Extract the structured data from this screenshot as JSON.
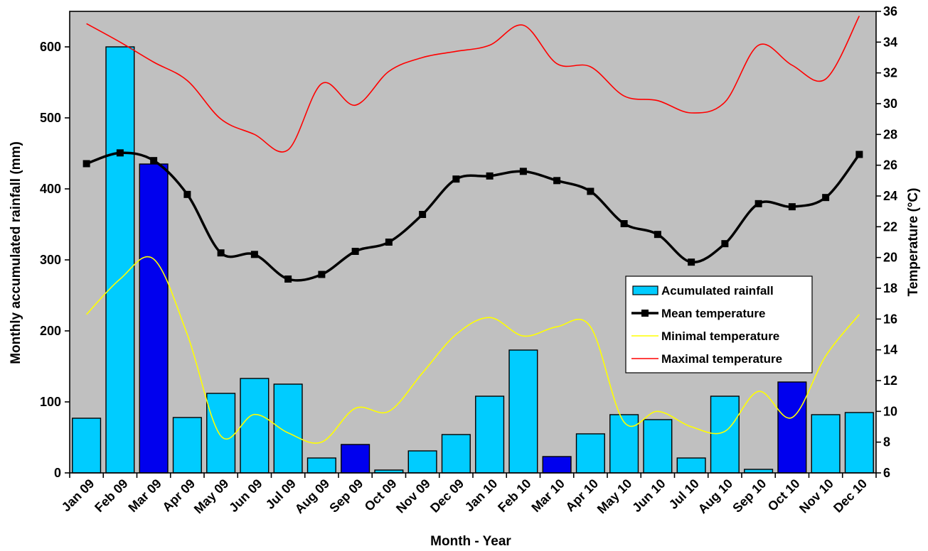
{
  "chart_data": {
    "type": "bar",
    "title": "",
    "xlabel": "Month - Year",
    "ylabel": "Monthly accumulated rainfall (mm)",
    "y2label": "Temperature (°C)",
    "categories": [
      "Jan 09",
      "Feb 09",
      "Mar 09",
      "Apr 09",
      "May 09",
      "Jun 09",
      "Jul 09",
      "Aug 09",
      "Sep 09",
      "Oct 09",
      "Nov 09",
      "Dec 09",
      "Jan 10",
      "Feb 10",
      "Mar 10",
      "Apr 10",
      "May 10",
      "Jun 10",
      "Jul 10",
      "Aug 10",
      "Sep 10",
      "Oct 10",
      "Nov 10",
      "Dec 10"
    ],
    "ylim": [
      0,
      650
    ],
    "y_ticks": [
      0,
      100,
      200,
      300,
      400,
      500,
      600
    ],
    "y2lim": [
      6,
      36
    ],
    "y2_ticks": [
      6,
      8,
      10,
      12,
      14,
      16,
      18,
      20,
      22,
      24,
      26,
      28,
      30,
      32,
      34,
      36
    ],
    "grid": false,
    "legend_position": "center-right",
    "colors": {
      "plot_background": "#c0c0c0",
      "bar_light": "#00ccff",
      "bar_dark": "#0000ee",
      "mean_line": "#000000",
      "min_line": "#ffff00",
      "max_line": "#ff0000"
    },
    "series": [
      {
        "name": "Acumulated rainfall",
        "kind": "bar",
        "axis": "left",
        "values": [
          77,
          600,
          435,
          78,
          112,
          133,
          125,
          21,
          40,
          4,
          31,
          54,
          108,
          173,
          23,
          55,
          82,
          75,
          21,
          108,
          5,
          128,
          82,
          85
        ],
        "highlighted": [
          false,
          false,
          true,
          false,
          false,
          false,
          false,
          false,
          true,
          false,
          false,
          false,
          false,
          false,
          true,
          false,
          false,
          false,
          false,
          false,
          false,
          true,
          false,
          false
        ]
      },
      {
        "name": "Mean temperature",
        "kind": "line-markers",
        "axis": "right",
        "values": [
          26.1,
          26.8,
          26.3,
          24.1,
          20.3,
          20.2,
          18.6,
          18.9,
          20.4,
          21.0,
          22.8,
          25.1,
          25.3,
          25.6,
          25.0,
          24.3,
          22.2,
          21.5,
          19.7,
          20.9,
          23.5,
          23.3,
          23.9,
          26.7
        ]
      },
      {
        "name": "Minimal temperature",
        "kind": "line",
        "axis": "right",
        "values": [
          16.3,
          18.6,
          19.9,
          15.0,
          8.4,
          9.8,
          8.6,
          8.0,
          10.2,
          10.0,
          12.5,
          15.0,
          16.1,
          14.9,
          15.5,
          15.5,
          9.3,
          10.0,
          9.0,
          8.7,
          11.3,
          9.6,
          13.6,
          16.3
        ]
      },
      {
        "name": "Maximal temperature",
        "kind": "line",
        "axis": "right",
        "values": [
          35.2,
          34.0,
          32.7,
          31.5,
          29.0,
          28.0,
          27.0,
          31.3,
          29.9,
          32.1,
          33.0,
          33.4,
          33.8,
          35.1,
          32.6,
          32.4,
          30.5,
          30.2,
          29.4,
          30.1,
          33.8,
          32.5,
          31.6,
          35.7
        ]
      }
    ]
  }
}
